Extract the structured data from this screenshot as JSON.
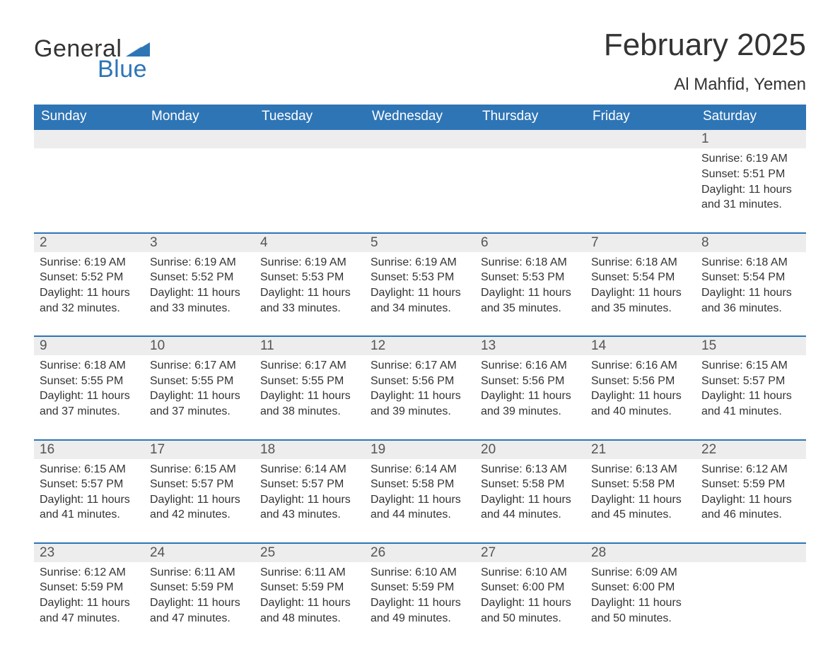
{
  "brand": {
    "word1": "General",
    "word2": "Blue",
    "tri_color": "#2e75b6"
  },
  "title": {
    "month_year": "February 2025",
    "location": "Al Mahfid, Yemen"
  },
  "colors": {
    "header_bg": "#2e75b6",
    "header_text": "#ffffff",
    "row_divider": "#2e75b6",
    "daynum_bg": "#ededed",
    "text": "#333333"
  },
  "weekdays": [
    "Sunday",
    "Monday",
    "Tuesday",
    "Wednesday",
    "Thursday",
    "Friday",
    "Saturday"
  ],
  "weeks": [
    {
      "days": [
        null,
        null,
        null,
        null,
        null,
        null,
        {
          "n": "1",
          "sunrise": "Sunrise: 6:19 AM",
          "sunset": "Sunset: 5:51 PM",
          "daylight": "Daylight: 11 hours and 31 minutes."
        }
      ]
    },
    {
      "days": [
        {
          "n": "2",
          "sunrise": "Sunrise: 6:19 AM",
          "sunset": "Sunset: 5:52 PM",
          "daylight": "Daylight: 11 hours and 32 minutes."
        },
        {
          "n": "3",
          "sunrise": "Sunrise: 6:19 AM",
          "sunset": "Sunset: 5:52 PM",
          "daylight": "Daylight: 11 hours and 33 minutes."
        },
        {
          "n": "4",
          "sunrise": "Sunrise: 6:19 AM",
          "sunset": "Sunset: 5:53 PM",
          "daylight": "Daylight: 11 hours and 33 minutes."
        },
        {
          "n": "5",
          "sunrise": "Sunrise: 6:19 AM",
          "sunset": "Sunset: 5:53 PM",
          "daylight": "Daylight: 11 hours and 34 minutes."
        },
        {
          "n": "6",
          "sunrise": "Sunrise: 6:18 AM",
          "sunset": "Sunset: 5:53 PM",
          "daylight": "Daylight: 11 hours and 35 minutes."
        },
        {
          "n": "7",
          "sunrise": "Sunrise: 6:18 AM",
          "sunset": "Sunset: 5:54 PM",
          "daylight": "Daylight: 11 hours and 35 minutes."
        },
        {
          "n": "8",
          "sunrise": "Sunrise: 6:18 AM",
          "sunset": "Sunset: 5:54 PM",
          "daylight": "Daylight: 11 hours and 36 minutes."
        }
      ]
    },
    {
      "days": [
        {
          "n": "9",
          "sunrise": "Sunrise: 6:18 AM",
          "sunset": "Sunset: 5:55 PM",
          "daylight": "Daylight: 11 hours and 37 minutes."
        },
        {
          "n": "10",
          "sunrise": "Sunrise: 6:17 AM",
          "sunset": "Sunset: 5:55 PM",
          "daylight": "Daylight: 11 hours and 37 minutes."
        },
        {
          "n": "11",
          "sunrise": "Sunrise: 6:17 AM",
          "sunset": "Sunset: 5:55 PM",
          "daylight": "Daylight: 11 hours and 38 minutes."
        },
        {
          "n": "12",
          "sunrise": "Sunrise: 6:17 AM",
          "sunset": "Sunset: 5:56 PM",
          "daylight": "Daylight: 11 hours and 39 minutes."
        },
        {
          "n": "13",
          "sunrise": "Sunrise: 6:16 AM",
          "sunset": "Sunset: 5:56 PM",
          "daylight": "Daylight: 11 hours and 39 minutes."
        },
        {
          "n": "14",
          "sunrise": "Sunrise: 6:16 AM",
          "sunset": "Sunset: 5:56 PM",
          "daylight": "Daylight: 11 hours and 40 minutes."
        },
        {
          "n": "15",
          "sunrise": "Sunrise: 6:15 AM",
          "sunset": "Sunset: 5:57 PM",
          "daylight": "Daylight: 11 hours and 41 minutes."
        }
      ]
    },
    {
      "days": [
        {
          "n": "16",
          "sunrise": "Sunrise: 6:15 AM",
          "sunset": "Sunset: 5:57 PM",
          "daylight": "Daylight: 11 hours and 41 minutes."
        },
        {
          "n": "17",
          "sunrise": "Sunrise: 6:15 AM",
          "sunset": "Sunset: 5:57 PM",
          "daylight": "Daylight: 11 hours and 42 minutes."
        },
        {
          "n": "18",
          "sunrise": "Sunrise: 6:14 AM",
          "sunset": "Sunset: 5:57 PM",
          "daylight": "Daylight: 11 hours and 43 minutes."
        },
        {
          "n": "19",
          "sunrise": "Sunrise: 6:14 AM",
          "sunset": "Sunset: 5:58 PM",
          "daylight": "Daylight: 11 hours and 44 minutes."
        },
        {
          "n": "20",
          "sunrise": "Sunrise: 6:13 AM",
          "sunset": "Sunset: 5:58 PM",
          "daylight": "Daylight: 11 hours and 44 minutes."
        },
        {
          "n": "21",
          "sunrise": "Sunrise: 6:13 AM",
          "sunset": "Sunset: 5:58 PM",
          "daylight": "Daylight: 11 hours and 45 minutes."
        },
        {
          "n": "22",
          "sunrise": "Sunrise: 6:12 AM",
          "sunset": "Sunset: 5:59 PM",
          "daylight": "Daylight: 11 hours and 46 minutes."
        }
      ]
    },
    {
      "days": [
        {
          "n": "23",
          "sunrise": "Sunrise: 6:12 AM",
          "sunset": "Sunset: 5:59 PM",
          "daylight": "Daylight: 11 hours and 47 minutes."
        },
        {
          "n": "24",
          "sunrise": "Sunrise: 6:11 AM",
          "sunset": "Sunset: 5:59 PM",
          "daylight": "Daylight: 11 hours and 47 minutes."
        },
        {
          "n": "25",
          "sunrise": "Sunrise: 6:11 AM",
          "sunset": "Sunset: 5:59 PM",
          "daylight": "Daylight: 11 hours and 48 minutes."
        },
        {
          "n": "26",
          "sunrise": "Sunrise: 6:10 AM",
          "sunset": "Sunset: 5:59 PM",
          "daylight": "Daylight: 11 hours and 49 minutes."
        },
        {
          "n": "27",
          "sunrise": "Sunrise: 6:10 AM",
          "sunset": "Sunset: 6:00 PM",
          "daylight": "Daylight: 11 hours and 50 minutes."
        },
        {
          "n": "28",
          "sunrise": "Sunrise: 6:09 AM",
          "sunset": "Sunset: 6:00 PM",
          "daylight": "Daylight: 11 hours and 50 minutes."
        },
        null
      ]
    }
  ]
}
